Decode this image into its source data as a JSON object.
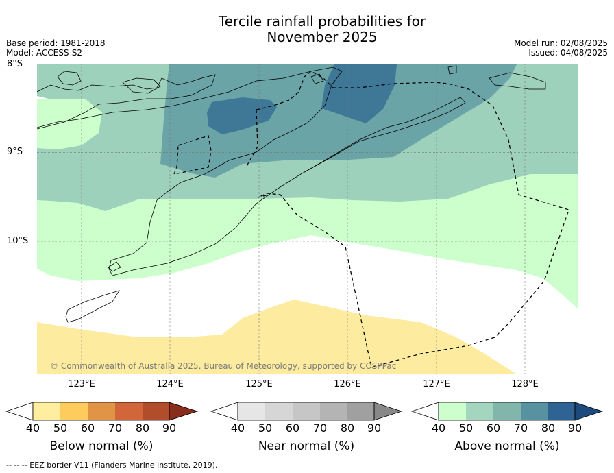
{
  "title_line1": "Tercile rainfall probabilities for",
  "title_line2": "November 2025",
  "meta_left": [
    "Base period: 1981-2018",
    "Model: ACCESS-S2"
  ],
  "meta_right": [
    "Model run: 02/08/2025",
    "Issued: 04/08/2025"
  ],
  "map": {
    "lat_labels": [
      "8°S",
      "9°S",
      "10°S"
    ],
    "lon_labels": [
      "123°E",
      "124°E",
      "125°E",
      "126°E",
      "127°E",
      "128°E"
    ],
    "copyright": "© Commonwealth of Australia 2025, Bureau of Meteorology, supported by COSPPac",
    "colors": {
      "ocean_white": "#ffffff",
      "above_50": "#ccffcc",
      "above_60": "#9dd1bb",
      "above_70": "#6ba4a6",
      "above_80": "#3f7896",
      "below_50": "#fdeba0"
    }
  },
  "colorbars": [
    {
      "title": "Below normal (%)",
      "ticks": [
        "40",
        "50",
        "60",
        "70",
        "80",
        "90"
      ],
      "colors": [
        "#ffffff",
        "#ffeda0",
        "#fecc5c",
        "#e29446",
        "#d0663a",
        "#b14d2a",
        "#8a2c1c"
      ]
    },
    {
      "title": "Near normal (%)",
      "ticks": [
        "40",
        "50",
        "60",
        "70",
        "80",
        "90"
      ],
      "colors": [
        "#ffffff",
        "#e6e6e6",
        "#d6d6d6",
        "#c6c6c6",
        "#b4b4b4",
        "#a0a0a0",
        "#888888"
      ]
    },
    {
      "title": "Above normal (%)",
      "ticks": [
        "40",
        "50",
        "60",
        "70",
        "80",
        "90"
      ],
      "colors": [
        "#ffffff",
        "#ccffcc",
        "#a4d6bf",
        "#82b6ad",
        "#5891a0",
        "#2f6393",
        "#1c4a7c"
      ]
    }
  ],
  "footnote": "--  --  -- EEZ border V11 (Flanders Marine Institute, 2019)."
}
